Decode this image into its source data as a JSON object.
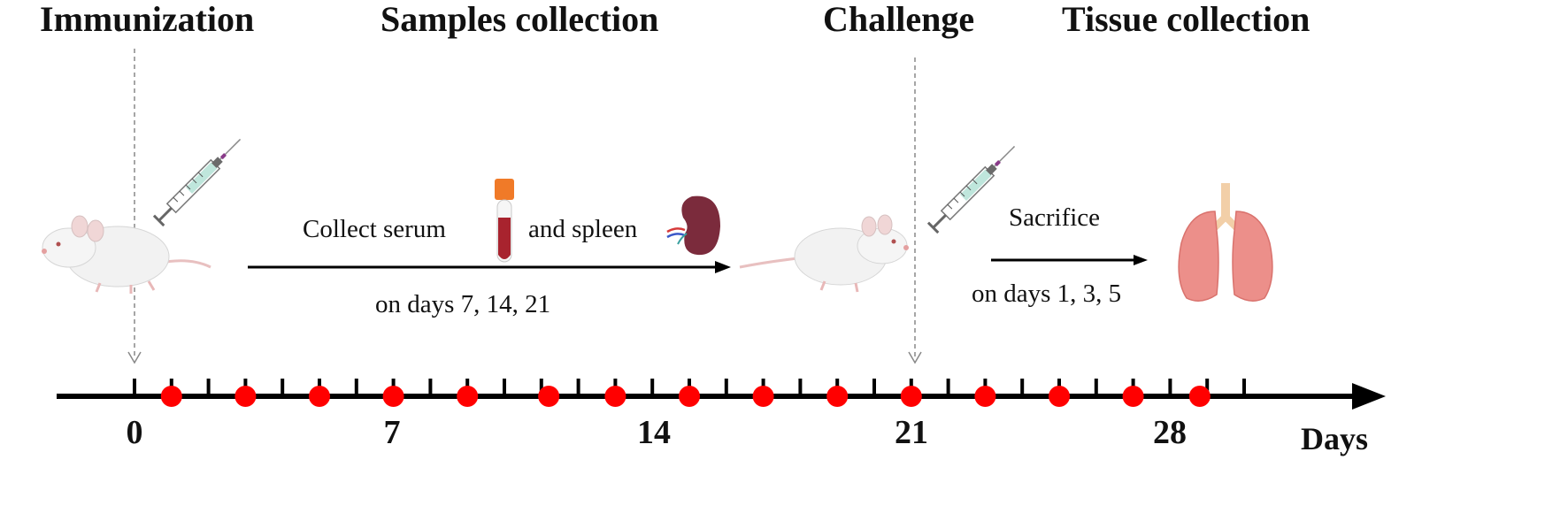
{
  "stages": {
    "immunization": "Immunization",
    "samples_collection": "Samples collection",
    "challenge": "Challenge",
    "tissue_collection": "Tissue collection"
  },
  "notes": {
    "collect_serum": "Collect serum",
    "and_spleen": "and spleen",
    "sample_days": "on days  7, 14, 21",
    "sacrifice": "Sacrifice",
    "sacrifice_days": "on days  1, 3, 5"
  },
  "timeline": {
    "unit": "Days",
    "labeled_days": [
      "0",
      "7",
      "14",
      "21",
      "28"
    ],
    "max_day": 30,
    "marker_days": [
      1,
      3,
      5,
      7,
      9,
      11.2,
      13,
      15,
      17,
      19,
      21,
      23,
      25,
      27,
      28.8
    ],
    "marker_color": "#ff0000",
    "axis_color": "#000000"
  },
  "icons": [
    "mouse",
    "syringe",
    "blood-tube",
    "spleen",
    "mouse",
    "syringe",
    "lungs"
  ]
}
